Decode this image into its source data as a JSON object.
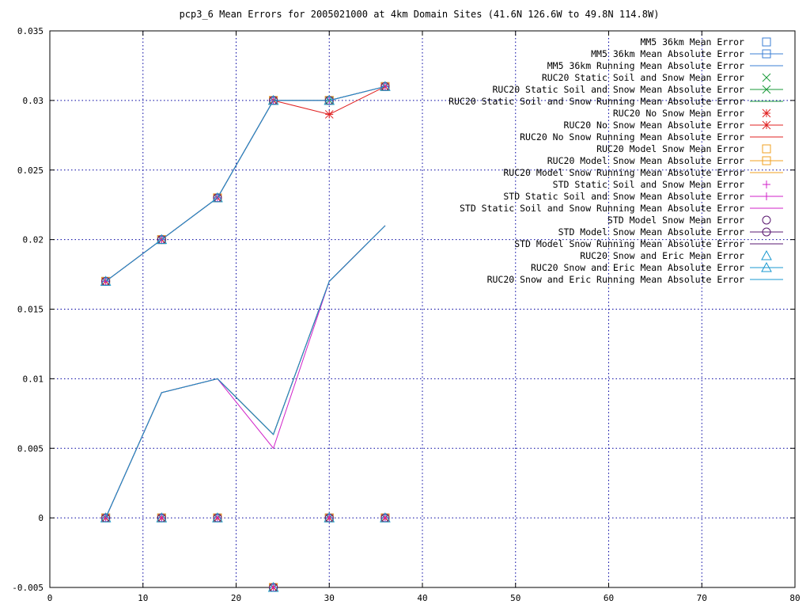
{
  "chart_data": {
    "type": "line",
    "title": "pcp3_6 Mean Errors for 2005021000 at 4km Domain Sites (41.6N 126.6W to 49.8N 114.8W)",
    "xlabel": "",
    "ylabel": "",
    "xlim": [
      0,
      80
    ],
    "ylim": [
      -0.005,
      0.035
    ],
    "x_ticks": [
      0,
      10,
      20,
      30,
      40,
      50,
      60,
      70,
      80
    ],
    "y_ticks": [
      -0.005,
      0,
      0.005,
      0.01,
      0.015,
      0.02,
      0.025,
      0.03,
      0.035
    ],
    "x_tick_labels": [
      "0",
      "10",
      "20",
      "30",
      "40",
      "50",
      "60",
      "70",
      "80"
    ],
    "y_tick_labels": [
      "-0.005",
      "0",
      "0.005",
      "0.01",
      "0.015",
      "0.02",
      "0.025",
      "0.03",
      "0.035"
    ],
    "grid": true,
    "legend_position": "top-right",
    "series": [
      {
        "name": "MM5 36km Mean Error",
        "color": "#3b7fd4",
        "style": "points",
        "marker": "square",
        "x": [
          6,
          12,
          18,
          24,
          30,
          36
        ],
        "y": [
          0,
          0,
          0,
          -0.005,
          0,
          0
        ]
      },
      {
        "name": "MM5 36km Mean Absolute Error",
        "color": "#3b7fd4",
        "style": "linespoints",
        "marker": "square",
        "x": [
          6,
          12,
          18,
          24,
          30,
          36
        ],
        "y": [
          0.017,
          0.02,
          0.023,
          0.03,
          0.03,
          0.031
        ]
      },
      {
        "name": "MM5 36km Running Mean Absolute Error",
        "color": "#3b7fd4",
        "style": "line",
        "marker": "none",
        "x": [
          6,
          12,
          18,
          24,
          30,
          36
        ],
        "y": [
          0,
          0.009,
          0.01,
          0.006,
          0.017,
          0.021
        ]
      },
      {
        "name": "RUC20 Static Soil and Snow Mean Error",
        "color": "#1a9a3a",
        "style": "points",
        "marker": "x",
        "x": [
          6,
          12,
          18,
          24,
          30,
          36
        ],
        "y": [
          0,
          0,
          0,
          -0.005,
          0,
          0
        ]
      },
      {
        "name": "RUC20 Static Soil and Snow Mean Absolute Error",
        "color": "#1a9a3a",
        "style": "linespoints",
        "marker": "x",
        "x": [
          6,
          12,
          18,
          24,
          30,
          36
        ],
        "y": [
          0.017,
          0.02,
          0.023,
          0.03,
          0.03,
          0.031
        ]
      },
      {
        "name": "RUC20 Static Soil and Snow Running Mean Absolute Error",
        "color": "#1a9a3a",
        "style": "line",
        "marker": "none",
        "x": [
          6,
          12,
          18,
          24,
          30,
          36
        ],
        "y": [
          0,
          0.009,
          0.01,
          0.006,
          0.017,
          0.021
        ]
      },
      {
        "name": "RUC20 No Snow Mean Error",
        "color": "#e02020",
        "style": "points",
        "marker": "star",
        "x": [
          6,
          12,
          18,
          24,
          30,
          36
        ],
        "y": [
          0,
          0,
          0,
          -0.005,
          0,
          0
        ]
      },
      {
        "name": "RUC20 No Snow Mean Absolute Error",
        "color": "#e02020",
        "style": "linespoints",
        "marker": "star",
        "x": [
          6,
          12,
          18,
          24,
          30,
          36
        ],
        "y": [
          0.017,
          0.02,
          0.023,
          0.03,
          0.029,
          0.031
        ]
      },
      {
        "name": "RUC20 No Snow Running Mean Absolute Error",
        "color": "#e02020",
        "style": "line",
        "marker": "none",
        "x": [
          6,
          12,
          18,
          24,
          30,
          36
        ],
        "y": [
          0,
          0.009,
          0.01,
          0.006,
          0.017,
          0.021
        ]
      },
      {
        "name": "RUC20 Model Snow Mean Error",
        "color": "#f0a020",
        "style": "points",
        "marker": "square",
        "x": [
          6,
          12,
          18,
          24,
          30,
          36
        ],
        "y": [
          0,
          0,
          0,
          -0.005,
          0,
          0
        ]
      },
      {
        "name": "RUC20 Model Snow Mean Absolute Error",
        "color": "#f0a020",
        "style": "linespoints",
        "marker": "square",
        "x": [
          6,
          12,
          18,
          24,
          30,
          36
        ],
        "y": [
          0.017,
          0.02,
          0.023,
          0.03,
          0.03,
          0.031
        ]
      },
      {
        "name": "RUC20 Model Snow Running Mean Absolute Error",
        "color": "#f0a020",
        "style": "line",
        "marker": "none",
        "x": [
          6,
          12,
          18,
          24,
          30,
          36
        ],
        "y": [
          0,
          0.009,
          0.01,
          0.006,
          0.017,
          0.021
        ]
      },
      {
        "name": "STD Static Soil and Snow Mean Error",
        "color": "#d020c8",
        "style": "points",
        "marker": "plus",
        "x": [
          6,
          12,
          18,
          24,
          30,
          36
        ],
        "y": [
          0,
          0,
          0,
          -0.005,
          0,
          0
        ]
      },
      {
        "name": "STD Static Soil and Snow Mean Absolute Error",
        "color": "#d020c8",
        "style": "linespoints",
        "marker": "plus",
        "x": [
          6,
          12,
          18,
          24,
          30,
          36
        ],
        "y": [
          0.017,
          0.02,
          0.023,
          0.03,
          0.03,
          0.031
        ]
      },
      {
        "name": "STD Static Soil and Snow Running Mean Absolute Error",
        "color": "#d020c8",
        "style": "line",
        "marker": "none",
        "x": [
          6,
          12,
          18,
          24,
          30,
          36
        ],
        "y": [
          0,
          0.009,
          0.01,
          0.005,
          0.017,
          0.021
        ]
      },
      {
        "name": "STD Model Snow Mean Error",
        "color": "#5a1870",
        "style": "points",
        "marker": "circle",
        "x": [
          6,
          12,
          18,
          24,
          30,
          36
        ],
        "y": [
          0,
          0,
          0,
          -0.005,
          0,
          0
        ]
      },
      {
        "name": "STD Model Snow Mean Absolute Error",
        "color": "#5a1870",
        "style": "linespoints",
        "marker": "circle",
        "x": [
          6,
          12,
          18,
          24,
          30,
          36
        ],
        "y": [
          0.017,
          0.02,
          0.023,
          0.03,
          0.03,
          0.031
        ]
      },
      {
        "name": "STD Model Snow Running Mean Absolute Error",
        "color": "#5a1870",
        "style": "line",
        "marker": "none",
        "x": [
          6,
          12,
          18,
          24,
          30,
          36
        ],
        "y": [
          0,
          0.009,
          0.01,
          0.006,
          0.017,
          0.021
        ]
      },
      {
        "name": "RUC20 Snow and Eric Mean Error",
        "color": "#1898d0",
        "style": "points",
        "marker": "triangle",
        "x": [
          6,
          12,
          18,
          24,
          30,
          36
        ],
        "y": [
          0,
          0,
          0,
          -0.005,
          0,
          0
        ]
      },
      {
        "name": "RUC20 Snow and Eric Mean Absolute Error",
        "color": "#1898d0",
        "style": "linespoints",
        "marker": "triangle",
        "x": [
          6,
          12,
          18,
          24,
          30,
          36
        ],
        "y": [
          0.017,
          0.02,
          0.023,
          0.03,
          0.03,
          0.031
        ]
      },
      {
        "name": "RUC20 Snow and Eric Running Mean Absolute Error",
        "color": "#1898d0",
        "style": "line",
        "marker": "none",
        "x": [
          6,
          12,
          18,
          24,
          30,
          36
        ],
        "y": [
          0,
          0.009,
          0.01,
          0.006,
          0.017,
          0.021
        ]
      }
    ]
  }
}
